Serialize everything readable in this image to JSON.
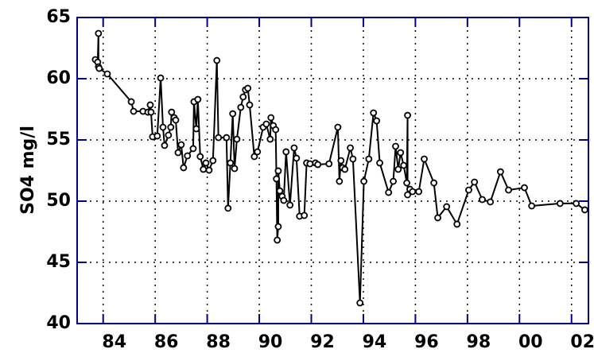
{
  "chart_data": {
    "type": "line",
    "y_label": "SO4  mg/l",
    "color": "#000000",
    "axis_color": "#00008b",
    "grid": true,
    "xlim": [
      83,
      102.65
    ],
    "ylim": [
      40,
      65
    ],
    "xticks": [
      84,
      86,
      88,
      90,
      92,
      94,
      96,
      98,
      {
        "value": 100,
        "label": "00"
      },
      {
        "value": 102,
        "label": "02"
      }
    ],
    "yticks": [
      40,
      45,
      50,
      55,
      60,
      65
    ],
    "x": [
      83.7,
      83.79,
      83.82,
      83.82,
      83.85,
      84.16,
      85.08,
      85.17,
      85.53,
      85.72,
      85.81,
      85.84,
      85.9,
      86.08,
      86.21,
      86.3,
      86.36,
      86.51,
      86.6,
      86.63,
      86.73,
      86.79,
      86.88,
      87.0,
      87.09,
      87.24,
      87.46,
      87.49,
      87.58,
      87.64,
      87.73,
      87.85,
      87.95,
      88.07,
      88.22,
      88.37,
      88.43,
      88.74,
      88.8,
      88.89,
      88.98,
      89.05,
      89.14,
      89.29,
      89.38,
      89.47,
      89.56,
      89.63,
      89.81,
      89.93,
      90.15,
      90.27,
      90.42,
      90.45,
      90.54,
      90.63,
      90.66,
      90.69,
      90.73,
      90.73,
      90.79,
      90.88,
      90.94,
      91.03,
      91.18,
      91.34,
      91.43,
      91.55,
      91.73,
      91.82,
      91.95,
      92.16,
      92.25,
      92.68,
      93.02,
      93.08,
      93.14,
      93.2,
      93.29,
      93.5,
      93.6,
      93.87,
      94.02,
      94.21,
      94.39,
      94.51,
      94.63,
      94.97,
      95.15,
      95.24,
      95.34,
      95.43,
      95.55,
      95.67,
      95.7,
      95.7,
      95.79,
      95.89,
      96.13,
      96.34,
      96.71,
      96.86,
      97.2,
      97.6,
      98.05,
      98.27,
      98.57,
      98.88,
      99.27,
      99.58,
      100.19,
      100.47,
      101.56,
      102.18,
      102.51
    ],
    "values": [
      61.56,
      61.36,
      63.7,
      60.97,
      60.84,
      60.39,
      58.12,
      57.34,
      57.34,
      57.27,
      57.86,
      57.27,
      55.26,
      55.32,
      60.06,
      56.04,
      54.55,
      55.39,
      56.04,
      57.27,
      56.82,
      56.62,
      53.96,
      54.61,
      52.73,
      53.7,
      54.29,
      58.12,
      55.91,
      58.31,
      53.64,
      52.6,
      53.12,
      52.53,
      53.31,
      61.49,
      55.19,
      55.19,
      49.42,
      53.12,
      57.14,
      52.66,
      55.06,
      57.66,
      58.51,
      59.09,
      59.22,
      57.86,
      53.64,
      54.03,
      56.04,
      56.3,
      55.06,
      56.82,
      56.17,
      55.84,
      51.82,
      46.82,
      47.92,
      52.47,
      50.84,
      50.39,
      50.06,
      54.03,
      49.68,
      54.35,
      53.51,
      48.77,
      48.83,
      53.12,
      53.05,
      53.12,
      52.99,
      53.05,
      56.04,
      51.62,
      53.31,
      52.73,
      52.6,
      54.35,
      53.44,
      41.69,
      51.62,
      53.44,
      57.21,
      56.56,
      53.12,
      50.71,
      51.62,
      54.48,
      52.6,
      53.96,
      52.92,
      51.49,
      57.01,
      50.52,
      50.97,
      50.78,
      50.78,
      53.44,
      51.49,
      48.64,
      49.55,
      48.12,
      50.91,
      51.56,
      50.13,
      49.94,
      52.4,
      50.91,
      51.1,
      49.61,
      49.81,
      49.81,
      49.29
    ]
  }
}
